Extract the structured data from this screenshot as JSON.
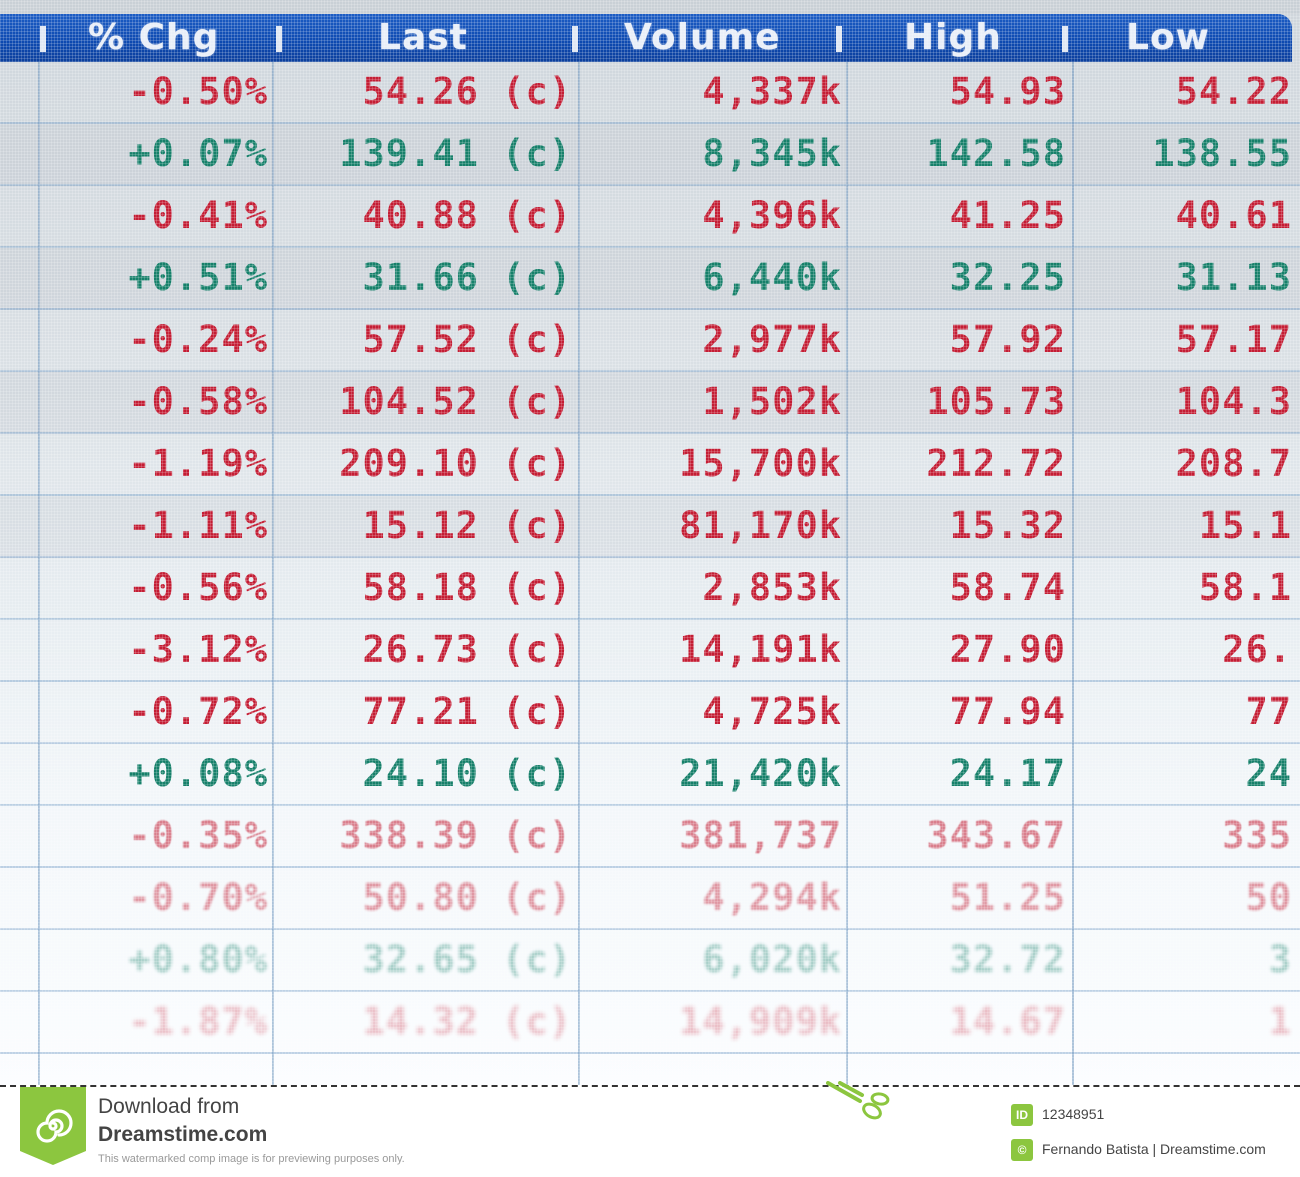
{
  "table": {
    "columns": [
      {
        "key": "pct_chg",
        "label": "% Chg"
      },
      {
        "key": "last",
        "label": "Last"
      },
      {
        "key": "volume",
        "label": "Volume"
      },
      {
        "key": "high",
        "label": "High"
      },
      {
        "key": "low",
        "label": "Low"
      }
    ],
    "rows": [
      {
        "pct_chg": "-0.50%",
        "last": "54.26 (c)",
        "volume": "4,337k",
        "high": "54.93",
        "low": "54.22",
        "trend": "neg"
      },
      {
        "pct_chg": "+0.07%",
        "last": "139.41 (c)",
        "volume": "8,345k",
        "high": "142.58",
        "low": "138.55",
        "trend": "pos"
      },
      {
        "pct_chg": "-0.41%",
        "last": "40.88 (c)",
        "volume": "4,396k",
        "high": "41.25",
        "low": "40.61",
        "trend": "neg"
      },
      {
        "pct_chg": "+0.51%",
        "last": "31.66 (c)",
        "volume": "6,440k",
        "high": "32.25",
        "low": "31.13",
        "trend": "pos"
      },
      {
        "pct_chg": "-0.24%",
        "last": "57.52 (c)",
        "volume": "2,977k",
        "high": "57.92",
        "low": "57.17",
        "trend": "neg"
      },
      {
        "pct_chg": "-0.58%",
        "last": "104.52 (c)",
        "volume": "1,502k",
        "high": "105.73",
        "low": "104.3",
        "trend": "neg"
      },
      {
        "pct_chg": "-1.19%",
        "last": "209.10 (c)",
        "volume": "15,700k",
        "high": "212.72",
        "low": "208.7",
        "trend": "neg"
      },
      {
        "pct_chg": "-1.11%",
        "last": "15.12 (c)",
        "volume": "81,170k",
        "high": "15.32",
        "low": "15.1",
        "trend": "neg"
      },
      {
        "pct_chg": "-0.56%",
        "last": "58.18 (c)",
        "volume": "2,853k",
        "high": "58.74",
        "low": "58.1",
        "trend": "neg"
      },
      {
        "pct_chg": "-3.12%",
        "last": "26.73 (c)",
        "volume": "14,191k",
        "high": "27.90",
        "low": "26.",
        "trend": "neg"
      },
      {
        "pct_chg": "-0.72%",
        "last": "77.21 (c)",
        "volume": "4,725k",
        "high": "77.94",
        "low": "77",
        "trend": "neg"
      },
      {
        "pct_chg": "+0.08%",
        "last": "24.10 (c)",
        "volume": "21,420k",
        "high": "24.17",
        "low": "24",
        "trend": "pos"
      },
      {
        "pct_chg": "-0.35%",
        "last": "338.39 (c)",
        "volume": "381,737",
        "high": "343.67",
        "low": "335",
        "trend": "neg"
      },
      {
        "pct_chg": "-0.70%",
        "last": "50.80 (c)",
        "volume": "4,294k",
        "high": "51.25",
        "low": "50",
        "trend": "neg"
      },
      {
        "pct_chg": "+0.80%",
        "last": "32.65 (c)",
        "volume": "6,020k",
        "high": "32.72",
        "low": "3",
        "trend": "pos"
      },
      {
        "pct_chg": "-1.87%",
        "last": "14.32 (c)",
        "volume": "14,909k",
        "high": "14.67",
        "low": "1",
        "trend": "neg"
      }
    ]
  },
  "colors": {
    "header_bg": "#0d49b0",
    "negative": "#c41d34",
    "positive": "#16806a"
  },
  "watermark": {
    "line1": "Download from",
    "line2": "Dreamstime.com",
    "line3": "This watermarked comp image is for previewing purposes only.",
    "id_icon": "ID",
    "id_value": "12348951",
    "credit": "Fernando Batista | Dreamstime.com",
    "brand_color": "#8cc63f"
  }
}
